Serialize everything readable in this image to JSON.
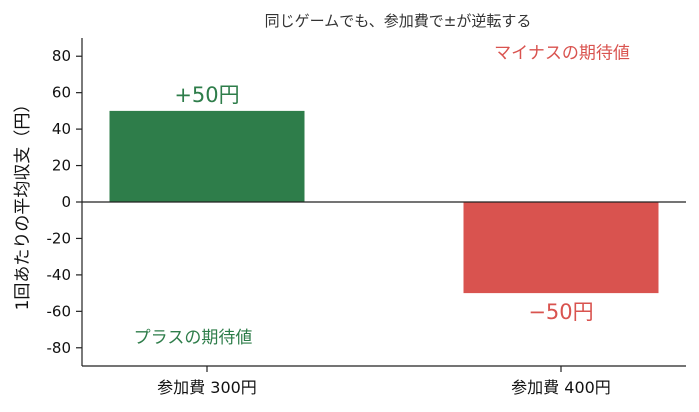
{
  "chart_data": {
    "type": "bar",
    "title": "同じゲームでも、参加費で±が逆転する",
    "ylabel": "1回あたりの平均収支（円）",
    "xlabel": "",
    "categories": [
      "参加費 300円",
      "参加費 400円"
    ],
    "values": [
      50,
      -50
    ],
    "data_labels": [
      "+50円",
      "−50円"
    ],
    "colors": [
      "#2e7d4a",
      "#d9534f"
    ],
    "ylim": [
      -90,
      90
    ],
    "yticks": [
      -80,
      -60,
      -40,
      -20,
      0,
      20,
      40,
      60,
      80
    ],
    "ytick_labels": [
      "-80",
      "-60",
      "-40",
      "-20",
      "0",
      "20",
      "40",
      "60",
      "80"
    ],
    "grid": false,
    "annotations": [
      {
        "text": "マイナスの期待値",
        "color": "#d9534f",
        "anchor_category": 1,
        "value": 82
      },
      {
        "text": "プラスの期待値",
        "color": "#2e7d4a",
        "anchor_category": 0,
        "value": -74
      }
    ]
  }
}
